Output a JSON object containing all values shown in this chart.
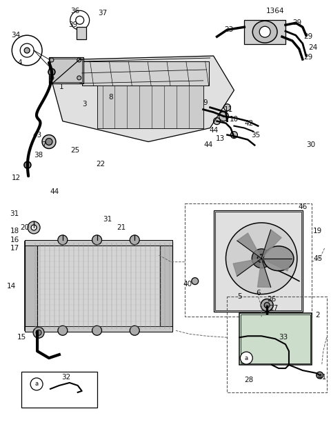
{
  "bg_color": "#ffffff",
  "line_color": "#000000",
  "figsize": [
    4.8,
    6.38
  ],
  "dpi": 100
}
